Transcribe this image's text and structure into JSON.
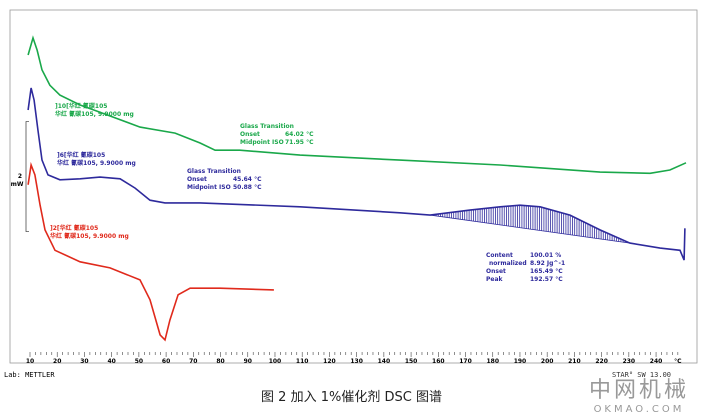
{
  "chart_data": {
    "type": "line",
    "xlabel": "°C",
    "xlim": [
      10,
      250
    ],
    "xticks": [
      10,
      20,
      30,
      40,
      50,
      60,
      70,
      80,
      90,
      100,
      110,
      120,
      130,
      140,
      150,
      160,
      170,
      180,
      190,
      200,
      210,
      220,
      230,
      240
    ],
    "scale_bar": {
      "label": "2",
      "unit": "mW",
      "value": 2
    },
    "grid": false,
    "series": [
      {
        "name": "]10[华红 氰碳105",
        "sample": "华红 氰碳105, 9.9000 mg",
        "color": "#1aa84a",
        "x": [
          9.3,
          11.1,
          12.6,
          14.4,
          17.3,
          21.0,
          28.4,
          35.7,
          50.4,
          63.3,
          72.5,
          78.0,
          87.1,
          109.2,
          145.9,
          182.7,
          219.4,
          237.8,
          245.1,
          251.0
        ],
        "y": [
          5.6,
          5.91,
          5.69,
          5.33,
          5.05,
          4.87,
          4.69,
          4.56,
          4.29,
          4.18,
          4.0,
          3.87,
          3.87,
          3.78,
          3.69,
          3.6,
          3.47,
          3.45,
          3.51,
          3.64
        ],
        "annotation": {
          "title": "Glass Transition",
          "rows": [
            [
              "Onset",
              "64.02 °C"
            ],
            [
              "Midpoint ISO",
              "71.95 °C"
            ]
          ]
        }
      },
      {
        "name": "]6[华红 氰碳105",
        "sample": "华红 氰碳105, 9.9000 mg",
        "color": "#2e2a9c",
        "x": [
          9.3,
          10.4,
          11.5,
          12.9,
          14.4,
          16.6,
          21.0,
          28.4,
          35.7,
          43.1,
          48.6,
          54.1,
          59.6,
          72.5,
          109.2,
          145.9,
          157.0,
          171.6,
          182.7,
          190.0,
          197.4,
          208.4,
          219.4,
          230.4,
          241.5,
          248.8,
          250.3,
          250.6
        ],
        "y": [
          4.6,
          5.0,
          4.78,
          4.24,
          3.69,
          3.42,
          3.33,
          3.35,
          3.38,
          3.35,
          3.18,
          2.96,
          2.91,
          2.91,
          2.84,
          2.73,
          2.69,
          2.78,
          2.84,
          2.87,
          2.84,
          2.69,
          2.42,
          2.18,
          2.09,
          2.05,
          1.87,
          2.45
        ],
        "peak_region": [
          157.0,
          230.4
        ],
        "annotation": {
          "title": "Glass Transition",
          "rows": [
            [
              "Onset",
              "45.64 °C"
            ],
            [
              "Midpoint ISO",
              "50.88 °C"
            ]
          ]
        },
        "peak_annotation": {
          "rows": [
            [
              "Content",
              "100.01 %"
            ],
            [
              "normalized",
              "8.92 Jg^-1"
            ],
            [
              "Onset",
              "165.49 °C"
            ],
            [
              "Peak",
              "192.57 °C"
            ]
          ]
        }
      },
      {
        "name": "]2[华红 氰碳105",
        "sample": "华红 氰碳105, 9.9000 mg",
        "color": "#e02a1c",
        "x": [
          9.3,
          10.4,
          11.8,
          13.7,
          15.5,
          19.2,
          28.4,
          39.4,
          50.4,
          54.1,
          57.8,
          59.6,
          61.4,
          64.4,
          68.8,
          79.8,
          99.6
        ],
        "y": [
          3.24,
          3.6,
          3.42,
          2.87,
          2.42,
          2.05,
          1.84,
          1.73,
          1.51,
          1.15,
          0.51,
          0.42,
          0.78,
          1.24,
          1.36,
          1.36,
          1.33
        ]
      }
    ]
  },
  "footer": {
    "lab": "Lab: METTLER",
    "software": "STAR° SW 13.00",
    "caption": "图 2 加入 1%催化剂 DSC 图谱",
    "watermark": "中网机械",
    "watermark_sub": "OKMAO.COM"
  }
}
